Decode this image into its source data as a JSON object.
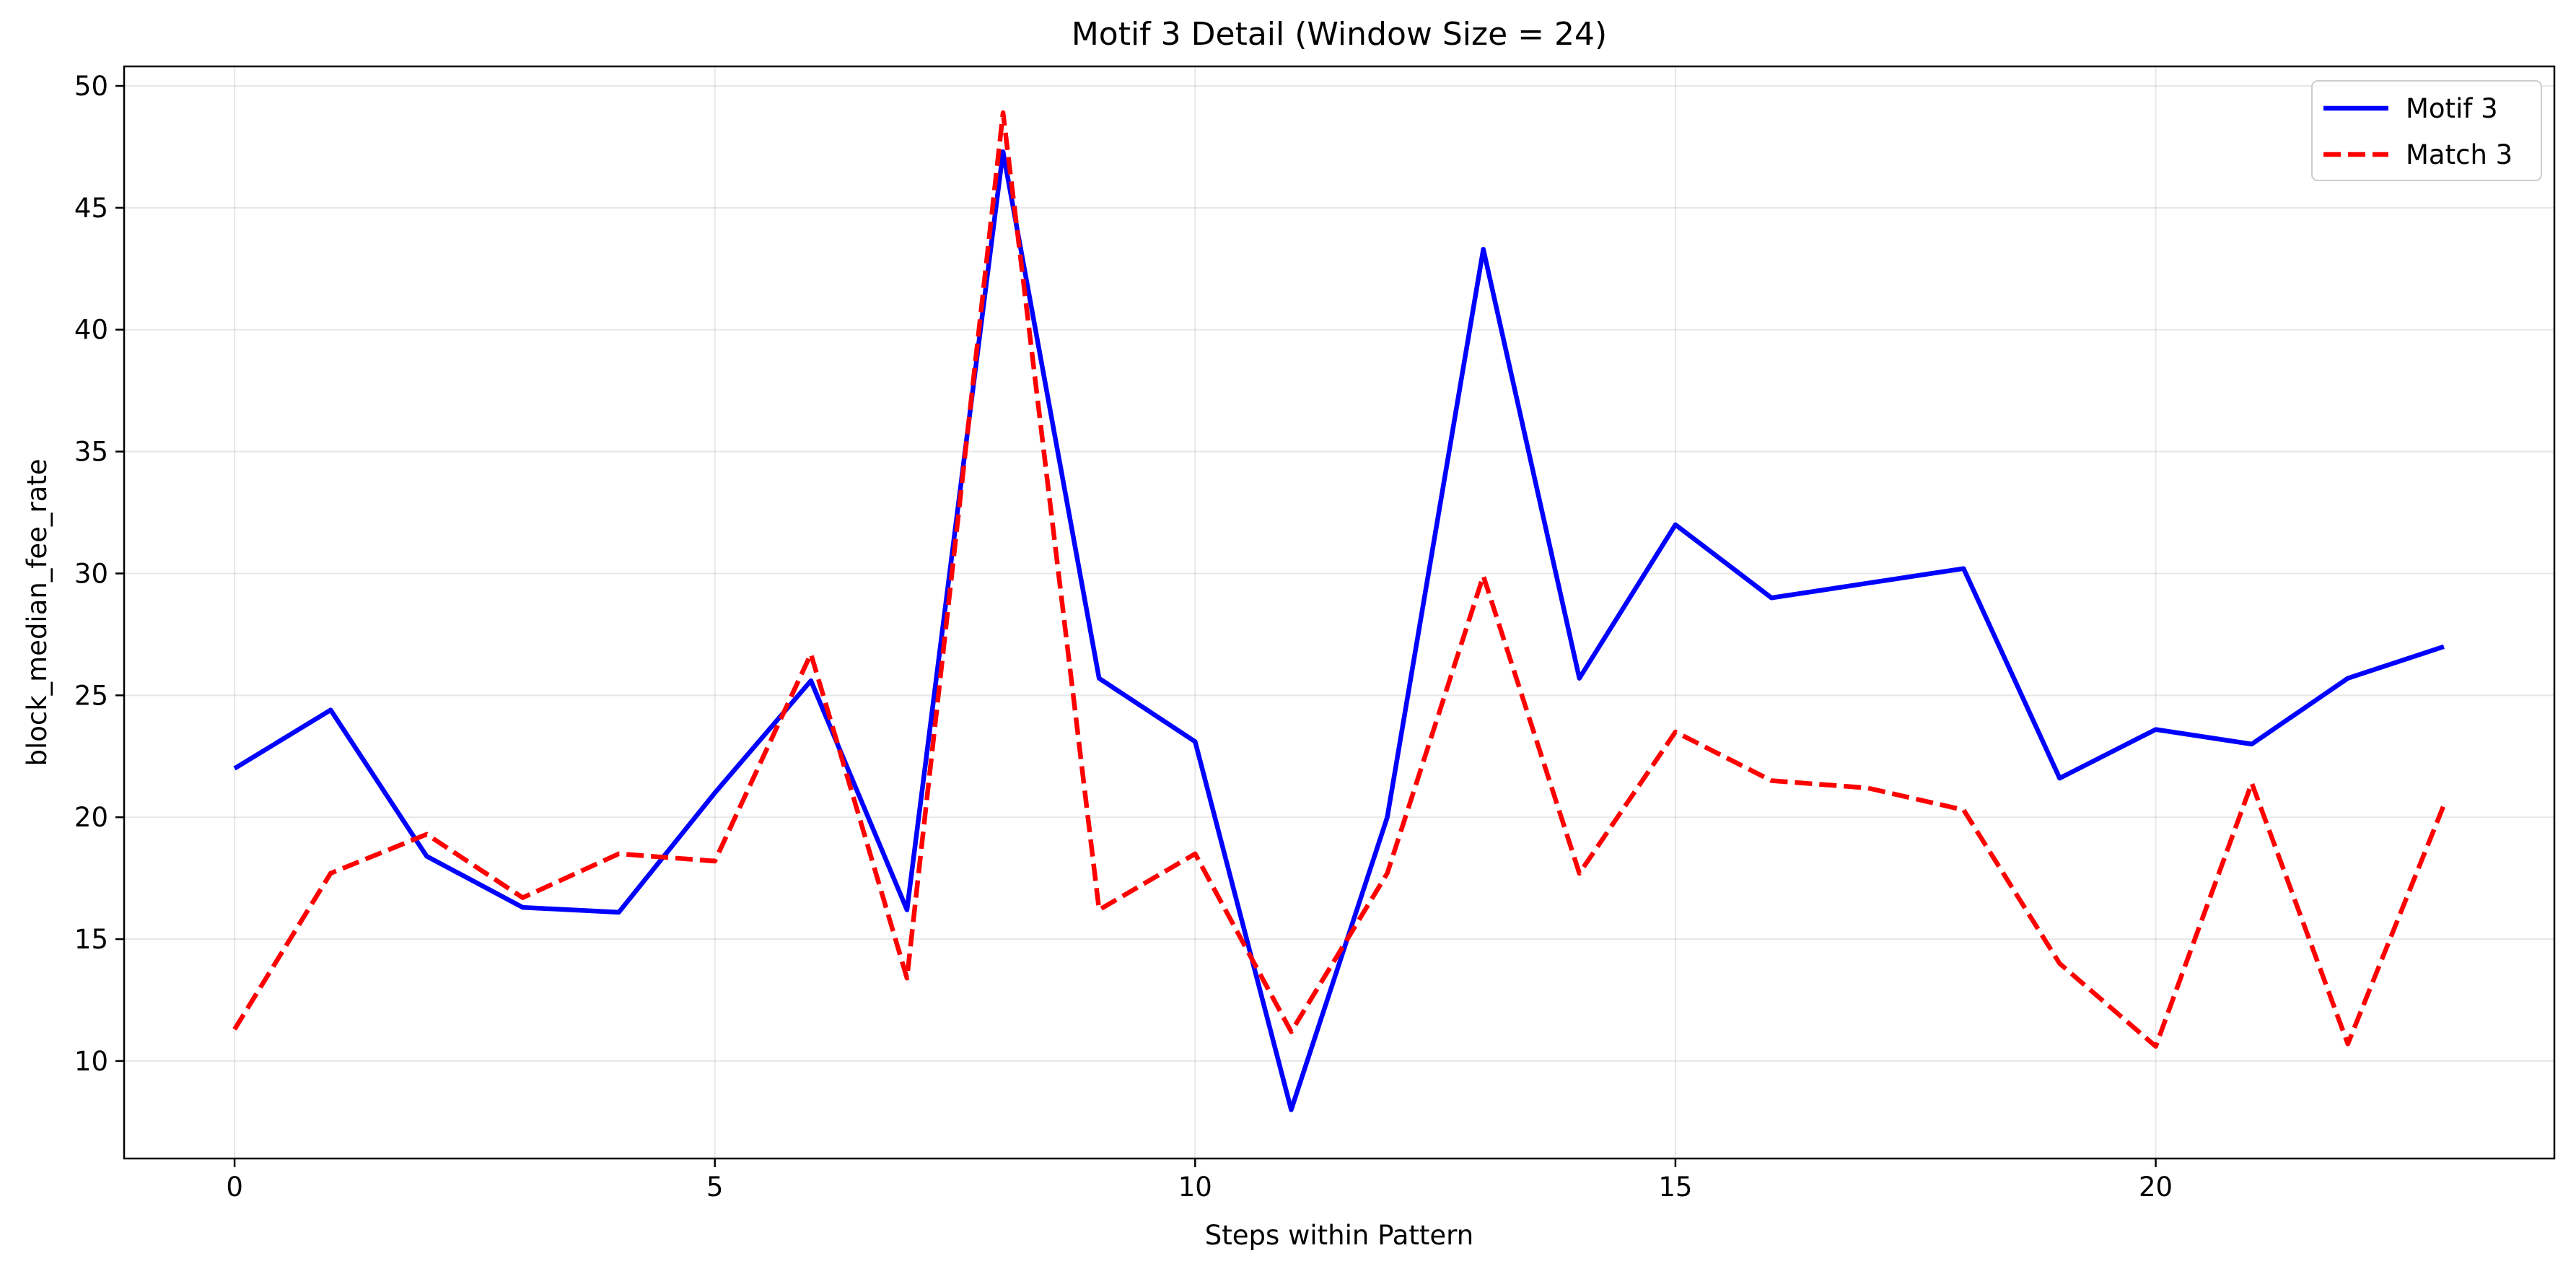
{
  "chart_data": {
    "type": "line",
    "title": "Motif 3 Detail (Window Size = 24)",
    "xlabel": "Steps within Pattern",
    "ylabel": "block_median_fee_rate",
    "xlim": [
      -1.15,
      24.15
    ],
    "ylim": [
      6.0,
      50.8
    ],
    "x_ticks": [
      0,
      5,
      10,
      15,
      20
    ],
    "y_ticks": [
      10,
      15,
      20,
      25,
      30,
      35,
      40,
      45,
      50
    ],
    "grid": true,
    "legend_position": "top-right",
    "x": [
      0,
      1,
      2,
      3,
      4,
      5,
      6,
      7,
      8,
      9,
      10,
      11,
      12,
      13,
      14,
      15,
      16,
      17,
      18,
      19,
      20,
      21,
      22,
      23
    ],
    "series": [
      {
        "name": "Motif 3",
        "color": "#0000ff",
        "style": "solid",
        "values": [
          22.0,
          24.4,
          18.4,
          16.3,
          16.1,
          21.0,
          25.6,
          16.2,
          47.3,
          25.7,
          23.1,
          8.0,
          20.0,
          43.3,
          25.7,
          32.0,
          29.0,
          29.6,
          30.2,
          21.6,
          23.6,
          23.0,
          25.7,
          27.0
        ]
      },
      {
        "name": "Match 3",
        "color": "#ff0000",
        "style": "dashed",
        "values": [
          11.3,
          17.7,
          19.3,
          16.7,
          18.5,
          18.2,
          26.7,
          13.4,
          48.9,
          16.2,
          18.5,
          11.2,
          17.7,
          29.9,
          17.7,
          23.5,
          21.5,
          21.2,
          20.3,
          14.0,
          10.6,
          21.4,
          10.7,
          20.5
        ]
      }
    ]
  }
}
